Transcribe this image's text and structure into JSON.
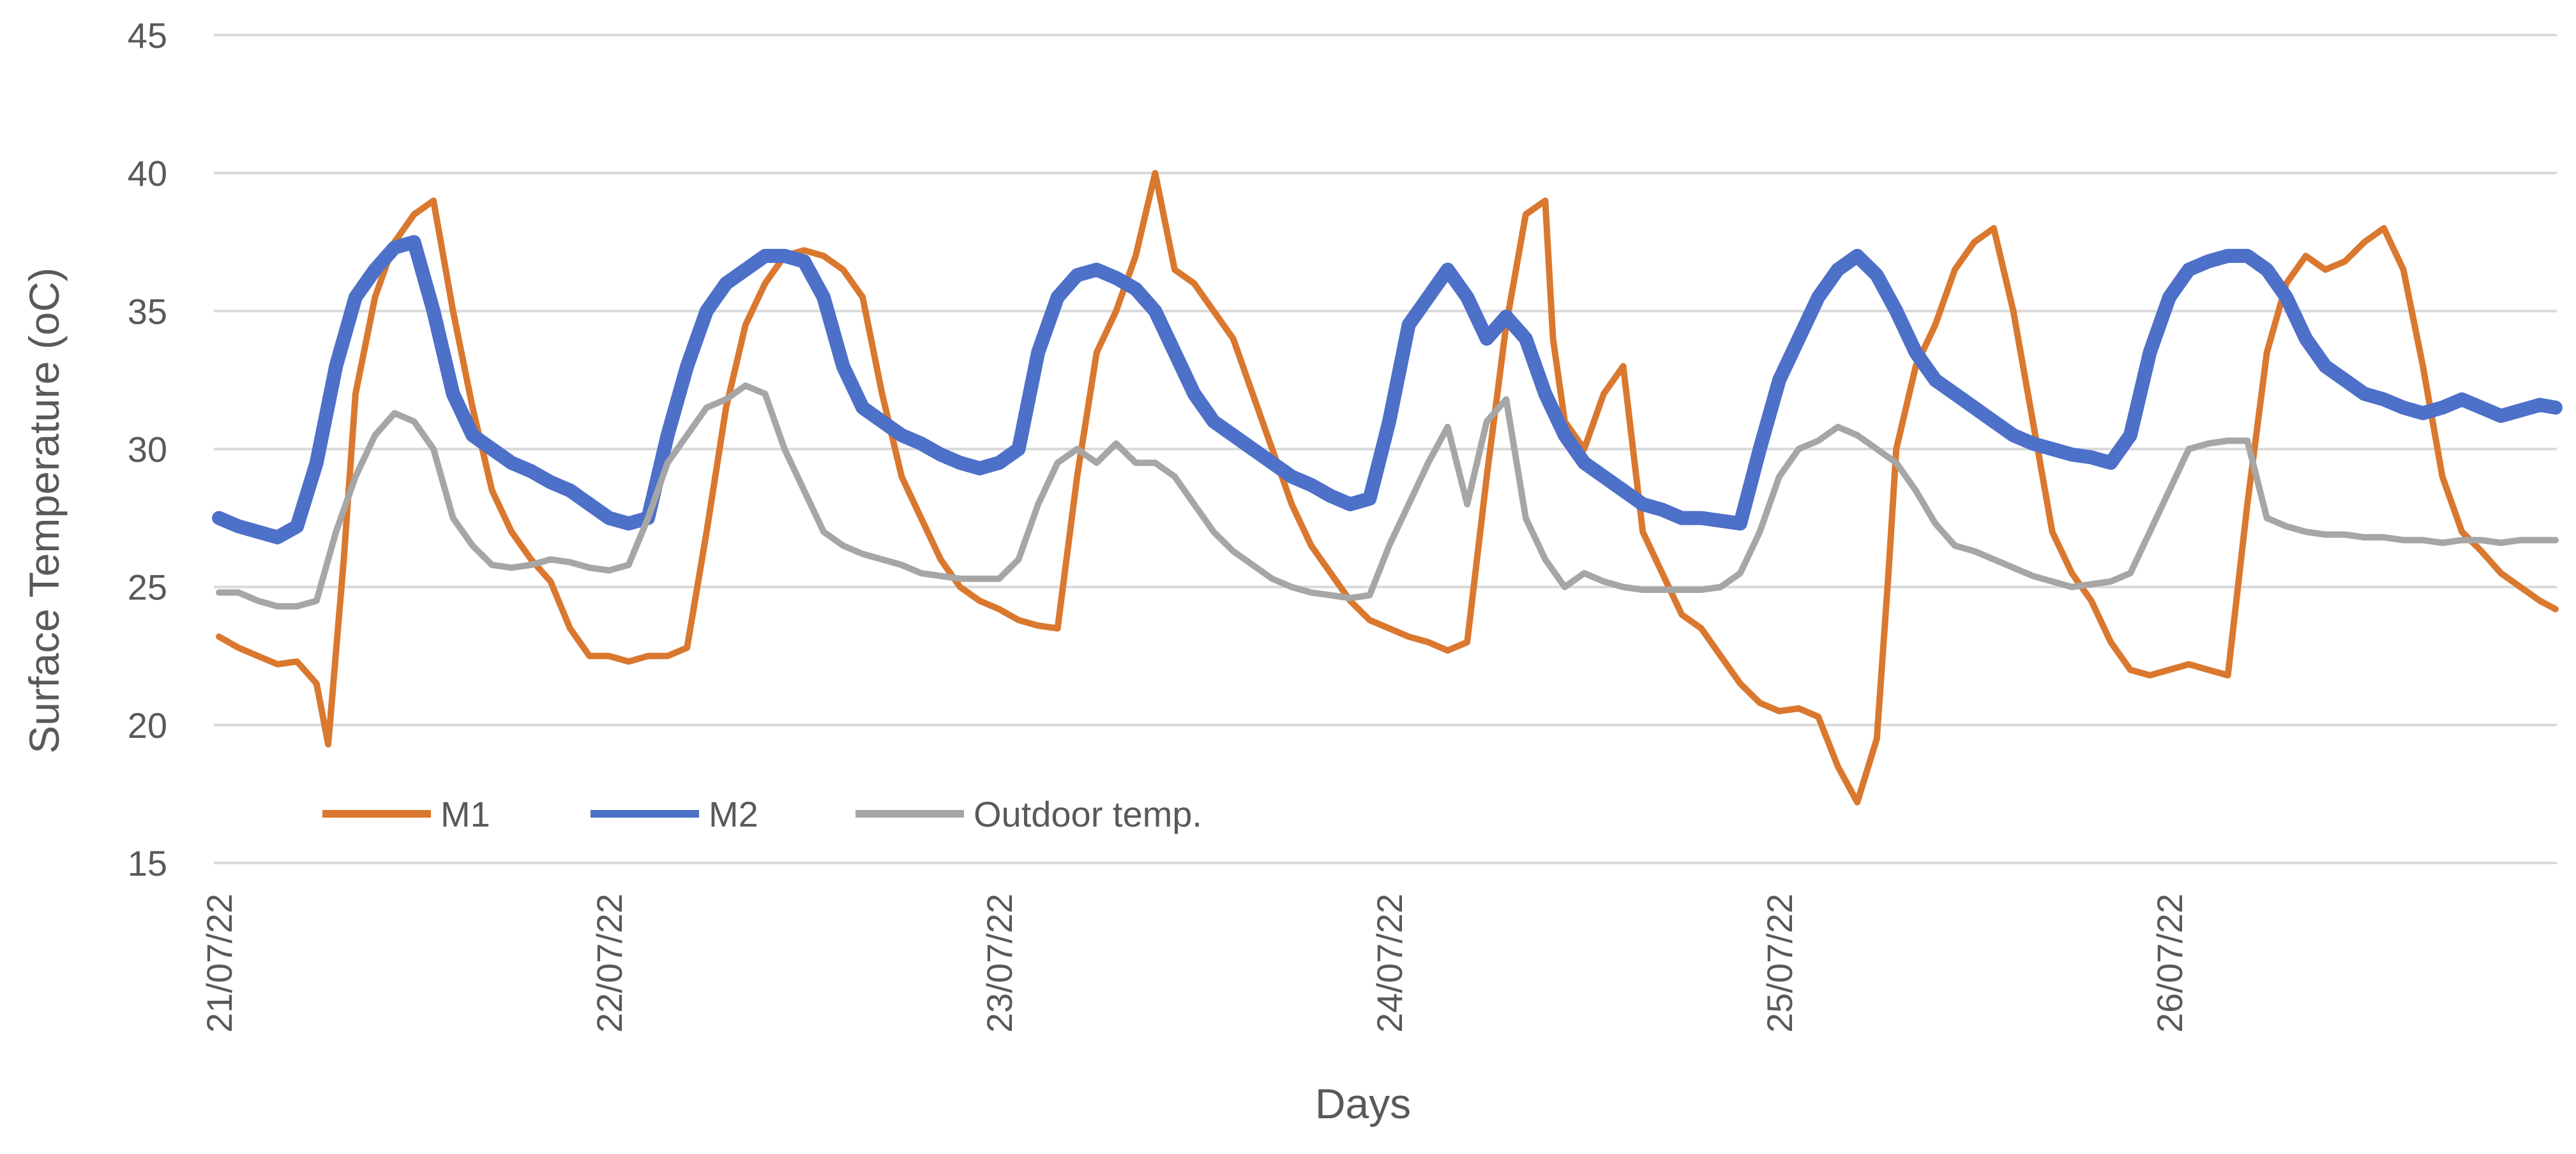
{
  "chart_data": {
    "type": "line",
    "title": "",
    "xlabel": "Days",
    "ylabel": "Surface Temperature (oC)",
    "ylim": [
      15,
      45
    ],
    "yticks": [
      15,
      20,
      25,
      30,
      35,
      40,
      45
    ],
    "xlim": [
      0,
      6
    ],
    "x_tick_labels": [
      "21/07/22",
      "22/07/22",
      "23/07/22",
      "24/07/22",
      "25/07/22",
      "26/07/22"
    ],
    "x_tick_positions": [
      0,
      1,
      2,
      3,
      4,
      5
    ],
    "x_unit": "days since 21/07/22 00:00",
    "grid": "horizontal",
    "legend_position": "bottom-left inside plot",
    "series": [
      {
        "name": "M1",
        "color": "#D9782E",
        "x": [
          0,
          0.05,
          0.1,
          0.15,
          0.2,
          0.25,
          0.28,
          0.32,
          0.35,
          0.4,
          0.45,
          0.5,
          0.55,
          0.6,
          0.65,
          0.7,
          0.75,
          0.8,
          0.85,
          0.9,
          0.95,
          1.0,
          1.05,
          1.1,
          1.15,
          1.2,
          1.25,
          1.3,
          1.35,
          1.4,
          1.45,
          1.5,
          1.55,
          1.6,
          1.65,
          1.7,
          1.75,
          1.8,
          1.85,
          1.9,
          1.95,
          2.0,
          2.05,
          2.1,
          2.15,
          2.2,
          2.25,
          2.3,
          2.35,
          2.4,
          2.45,
          2.5,
          2.55,
          2.6,
          2.65,
          2.7,
          2.75,
          2.8,
          2.85,
          2.9,
          2.95,
          3.0,
          3.05,
          3.1,
          3.15,
          3.2,
          3.25,
          3.3,
          3.35,
          3.4,
          3.42,
          3.45,
          3.5,
          3.55,
          3.6,
          3.65,
          3.7,
          3.75,
          3.8,
          3.85,
          3.9,
          3.95,
          4.0,
          4.05,
          4.1,
          4.15,
          4.2,
          4.25,
          4.28,
          4.3,
          4.35,
          4.4,
          4.45,
          4.5,
          4.55,
          4.6,
          4.65,
          4.7,
          4.75,
          4.8,
          4.85,
          4.9,
          4.95,
          5.0,
          5.05,
          5.1,
          5.15,
          5.2,
          5.25,
          5.3,
          5.35,
          5.4,
          5.45,
          5.5,
          5.55,
          5.6,
          5.65,
          5.7,
          5.75,
          5.8,
          5.85,
          5.9,
          5.95,
          5.99
        ],
        "values": [
          23.2,
          22.8,
          22.5,
          22.2,
          22.3,
          21.5,
          19.3,
          26,
          32,
          35.5,
          37.5,
          38.5,
          39,
          35,
          31.5,
          28.5,
          27,
          26,
          25.2,
          23.5,
          22.5,
          22.5,
          22.3,
          22.5,
          22.5,
          22.8,
          27,
          31.5,
          34.5,
          36,
          37,
          37.2,
          37,
          36.5,
          35.5,
          32,
          29,
          27.5,
          26,
          25,
          24.5,
          24.2,
          23.8,
          23.6,
          23.5,
          29,
          33.5,
          35,
          37,
          40,
          36.5,
          36,
          35,
          34,
          32,
          30,
          28,
          26.5,
          25.5,
          24.5,
          23.8,
          23.5,
          23.2,
          23,
          22.7,
          23,
          29,
          34.5,
          38.5,
          39,
          34,
          31,
          30,
          32,
          33,
          27,
          25.5,
          24,
          23.5,
          22.5,
          21.5,
          20.8,
          20.5,
          20.6,
          20.3,
          18.5,
          17.2,
          19.5,
          25.5,
          30,
          33,
          34.5,
          36.5,
          37.5,
          38,
          35,
          31,
          27,
          25.5,
          24.5,
          23,
          22,
          21.8,
          22,
          22.2,
          22,
          21.8,
          28,
          33.5,
          36,
          37,
          36.5,
          36.8,
          37.5,
          38,
          36.5,
          33,
          29,
          27,
          26.3,
          25.5,
          25,
          24.5,
          24.2
        ]
      },
      {
        "name": "M2",
        "color": "#4D70C8",
        "x": [
          0,
          0.05,
          0.1,
          0.15,
          0.2,
          0.25,
          0.3,
          0.35,
          0.4,
          0.45,
          0.5,
          0.55,
          0.6,
          0.65,
          0.7,
          0.75,
          0.8,
          0.85,
          0.9,
          0.95,
          1.0,
          1.05,
          1.1,
          1.15,
          1.2,
          1.25,
          1.3,
          1.35,
          1.4,
          1.45,
          1.5,
          1.55,
          1.6,
          1.65,
          1.7,
          1.75,
          1.8,
          1.85,
          1.9,
          1.95,
          2.0,
          2.05,
          2.1,
          2.15,
          2.2,
          2.25,
          2.3,
          2.35,
          2.4,
          2.45,
          2.5,
          2.55,
          2.6,
          2.65,
          2.7,
          2.75,
          2.8,
          2.85,
          2.9,
          2.95,
          3.0,
          3.05,
          3.1,
          3.15,
          3.2,
          3.25,
          3.3,
          3.35,
          3.4,
          3.45,
          3.5,
          3.55,
          3.6,
          3.65,
          3.7,
          3.75,
          3.8,
          3.85,
          3.9,
          3.95,
          4.0,
          4.05,
          4.1,
          4.15,
          4.2,
          4.25,
          4.3,
          4.35,
          4.4,
          4.45,
          4.5,
          4.55,
          4.6,
          4.65,
          4.7,
          4.75,
          4.8,
          4.85,
          4.9,
          4.95,
          5.0,
          5.05,
          5.1,
          5.15,
          5.2,
          5.25,
          5.3,
          5.35,
          5.4,
          5.45,
          5.5,
          5.55,
          5.6,
          5.65,
          5.7,
          5.75,
          5.8,
          5.85,
          5.9,
          5.95,
          5.99
        ],
        "values": [
          27.5,
          27.2,
          27,
          26.8,
          27.2,
          29.5,
          33,
          35.5,
          36.5,
          37.3,
          37.5,
          35,
          32,
          30.5,
          30,
          29.5,
          29.2,
          28.8,
          28.5,
          28,
          27.5,
          27.3,
          27.5,
          30.5,
          33,
          35,
          36,
          36.5,
          37,
          37,
          36.8,
          35.5,
          33,
          31.5,
          31,
          30.5,
          30.2,
          29.8,
          29.5,
          29.3,
          29.5,
          30,
          33.5,
          35.5,
          36.3,
          36.5,
          36.2,
          35.8,
          35,
          33.5,
          32,
          31,
          30.5,
          30,
          29.5,
          29,
          28.7,
          28.3,
          28,
          28.2,
          31,
          34.5,
          35.5,
          36.5,
          35.5,
          34,
          34.8,
          34,
          32,
          30.5,
          29.5,
          29,
          28.5,
          28,
          27.8,
          27.5,
          27.5,
          27.4,
          27.3,
          30,
          32.5,
          34,
          35.5,
          36.5,
          37,
          36.3,
          35,
          33.5,
          32.5,
          32,
          31.5,
          31,
          30.5,
          30.2,
          30,
          29.8,
          29.7,
          29.5,
          30.5,
          33.5,
          35.5,
          36.5,
          36.8,
          37,
          37,
          36.5,
          35.5,
          34,
          33,
          32.5,
          32,
          31.8,
          31.5,
          31.3,
          31.5,
          31.8,
          31.5,
          31.2,
          31.4,
          31.6,
          31.5
        ]
      },
      {
        "name": "Outdoor temp.",
        "color": "#A6A6A6",
        "x": [
          0,
          0.05,
          0.1,
          0.15,
          0.2,
          0.25,
          0.3,
          0.35,
          0.4,
          0.45,
          0.5,
          0.55,
          0.6,
          0.65,
          0.7,
          0.75,
          0.8,
          0.85,
          0.9,
          0.95,
          1.0,
          1.05,
          1.1,
          1.15,
          1.2,
          1.25,
          1.3,
          1.35,
          1.4,
          1.45,
          1.5,
          1.55,
          1.6,
          1.65,
          1.7,
          1.75,
          1.8,
          1.85,
          1.9,
          1.95,
          2.0,
          2.05,
          2.1,
          2.15,
          2.2,
          2.25,
          2.3,
          2.35,
          2.4,
          2.45,
          2.5,
          2.55,
          2.6,
          2.65,
          2.7,
          2.75,
          2.8,
          2.85,
          2.9,
          2.95,
          3.0,
          3.05,
          3.1,
          3.15,
          3.2,
          3.25,
          3.3,
          3.35,
          3.4,
          3.45,
          3.5,
          3.55,
          3.6,
          3.65,
          3.7,
          3.75,
          3.8,
          3.85,
          3.9,
          3.95,
          4.0,
          4.05,
          4.1,
          4.15,
          4.2,
          4.25,
          4.3,
          4.35,
          4.4,
          4.45,
          4.5,
          4.55,
          4.6,
          4.65,
          4.7,
          4.75,
          4.8,
          4.85,
          4.9,
          4.95,
          5.0,
          5.05,
          5.1,
          5.15,
          5.2,
          5.25,
          5.3,
          5.35,
          5.4,
          5.45,
          5.5,
          5.55,
          5.6,
          5.65,
          5.7,
          5.75,
          5.8,
          5.85,
          5.9,
          5.95,
          5.99
        ],
        "values": [
          24.8,
          24.8,
          24.5,
          24.3,
          24.3,
          24.5,
          27,
          29,
          30.5,
          31.3,
          31,
          30,
          27.5,
          26.5,
          25.8,
          25.7,
          25.8,
          26,
          25.9,
          25.7,
          25.6,
          25.8,
          27.5,
          29.5,
          30.5,
          31.5,
          31.8,
          32.3,
          32,
          30,
          28.5,
          27,
          26.5,
          26.2,
          26,
          25.8,
          25.5,
          25.4,
          25.3,
          25.3,
          25.3,
          26,
          28,
          29.5,
          30,
          29.5,
          30.2,
          29.5,
          29.5,
          29,
          28,
          27,
          26.3,
          25.8,
          25.3,
          25,
          24.8,
          24.7,
          24.6,
          24.7,
          26.5,
          28,
          29.5,
          30.8,
          28,
          31,
          31.8,
          27.5,
          26,
          25,
          25.5,
          25.2,
          25,
          24.9,
          24.9,
          24.9,
          24.9,
          25,
          25.5,
          27,
          29,
          30,
          30.3,
          30.8,
          30.5,
          30,
          29.5,
          28.5,
          27.3,
          26.5,
          26.3,
          26,
          25.7,
          25.4,
          25.2,
          25,
          25.1,
          25.2,
          25.5,
          27,
          28.5,
          30,
          30.2,
          30.3,
          30.3,
          27.5,
          27.2,
          27,
          26.9,
          26.9,
          26.8,
          26.8,
          26.7,
          26.7,
          26.6,
          26.7,
          26.7,
          26.6,
          26.7,
          26.7,
          26.7
        ]
      }
    ]
  }
}
